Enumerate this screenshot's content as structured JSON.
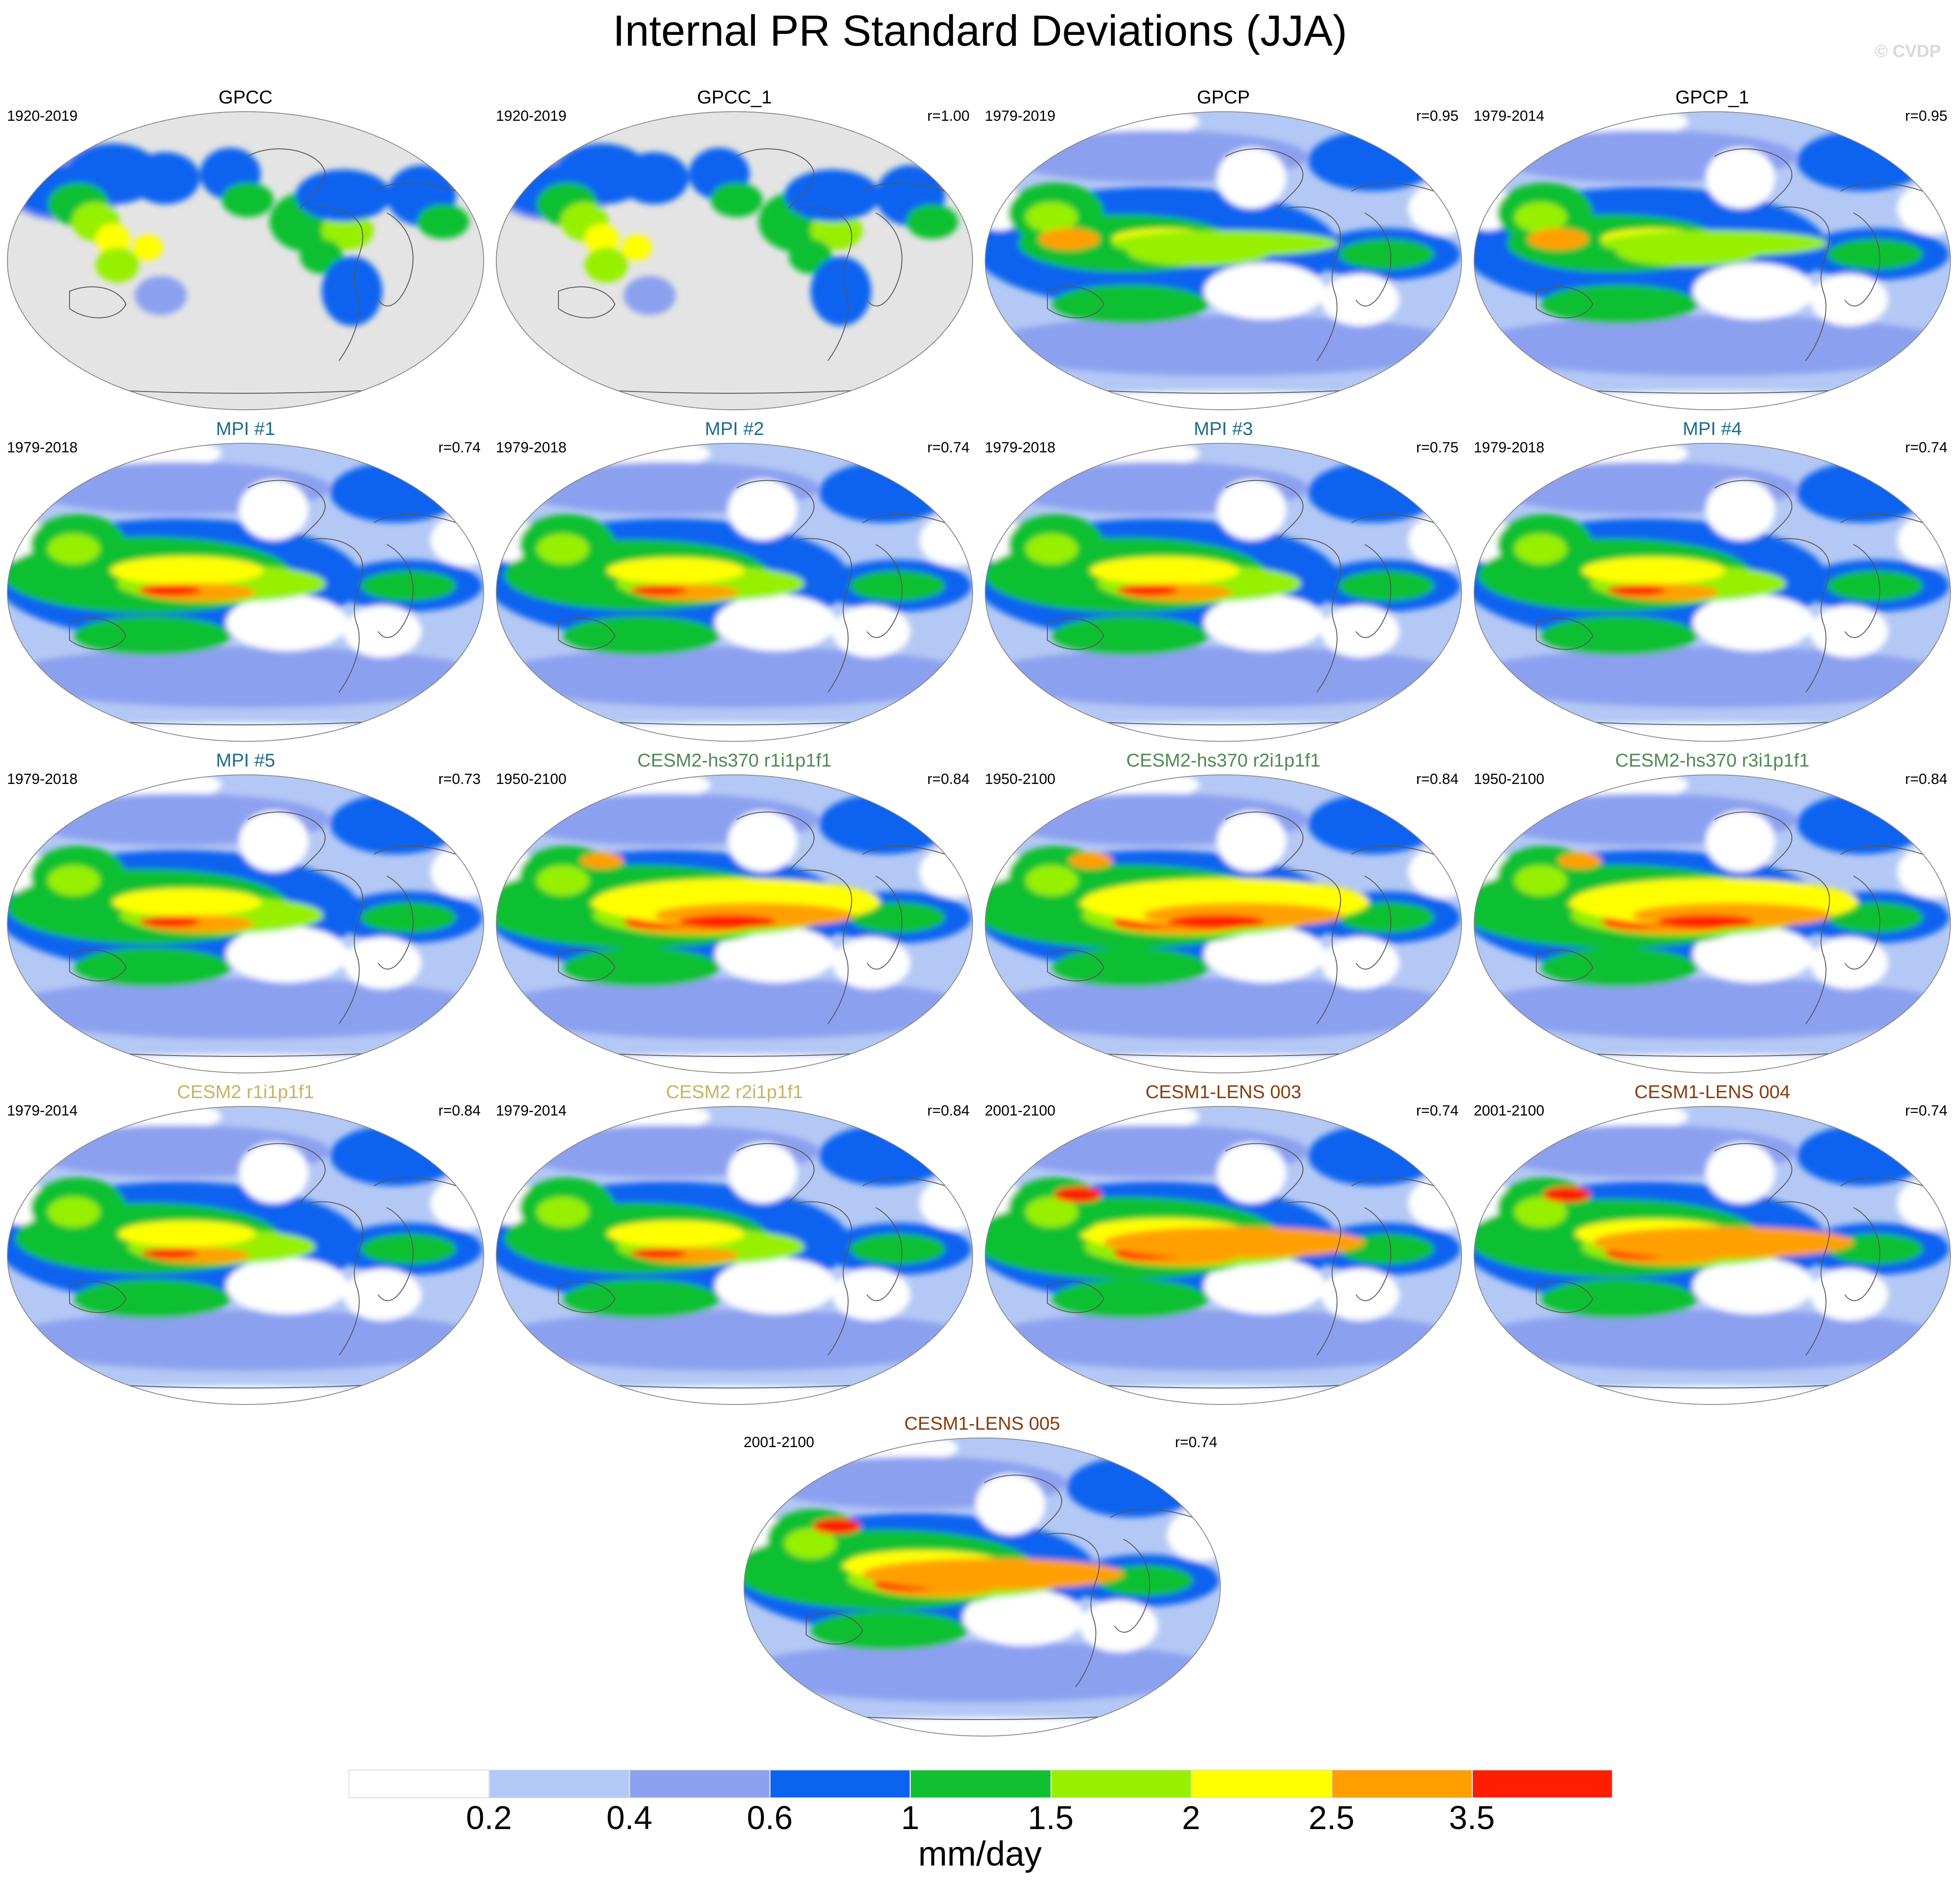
{
  "title": "Internal PR Standard Deviations (JJA)",
  "copyright": "© CVDP",
  "colors": {
    "obs_title": "#000000",
    "mpi_title": "#1e6b8a",
    "cesm2_hs370_title": "#4e8a55",
    "cesm2_title": "#c9b261",
    "cesm1_lens_title": "#8b3a0a",
    "ocean_mask": "#e4e4e4"
  },
  "panels": [
    {
      "title": "GPCC",
      "period": "1920-2019",
      "corr": "",
      "group": "obs",
      "mask": true,
      "intensity": 0.55,
      "variant": 0
    },
    {
      "title": "GPCC_1",
      "period": "1920-2019",
      "corr": "r=1.00",
      "group": "obs",
      "mask": true,
      "intensity": 0.55,
      "variant": 0
    },
    {
      "title": "GPCP",
      "period": "1979-2019",
      "corr": "r=0.95",
      "group": "obs",
      "mask": false,
      "intensity": 0.55,
      "variant": 1
    },
    {
      "title": "GPCP_1",
      "period": "1979-2014",
      "corr": "r=0.95",
      "group": "obs",
      "mask": false,
      "intensity": 0.55,
      "variant": 1
    },
    {
      "title": "MPI #1",
      "period": "1979-2018",
      "corr": "r=0.74",
      "group": "mpi",
      "mask": false,
      "intensity": 0.8,
      "variant": 2
    },
    {
      "title": "MPI #2",
      "period": "1979-2018",
      "corr": "r=0.74",
      "group": "mpi",
      "mask": false,
      "intensity": 0.72,
      "variant": 2
    },
    {
      "title": "MPI #3",
      "period": "1979-2018",
      "corr": "r=0.75",
      "group": "mpi",
      "mask": false,
      "intensity": 0.78,
      "variant": 2
    },
    {
      "title": "MPI #4",
      "period": "1979-2018",
      "corr": "r=0.74",
      "group": "mpi",
      "mask": false,
      "intensity": 0.75,
      "variant": 2
    },
    {
      "title": "MPI #5",
      "period": "1979-2018",
      "corr": "r=0.73",
      "group": "mpi",
      "mask": false,
      "intensity": 0.78,
      "variant": 2
    },
    {
      "title": "CESM2-hs370 r1i1p1f1",
      "period": "1950-2100",
      "corr": "r=0.84",
      "group": "cesm2_hs370",
      "mask": false,
      "intensity": 0.9,
      "variant": 3
    },
    {
      "title": "CESM2-hs370 r2i1p1f1",
      "period": "1950-2100",
      "corr": "r=0.84",
      "group": "cesm2_hs370",
      "mask": false,
      "intensity": 0.9,
      "variant": 3
    },
    {
      "title": "CESM2-hs370 r3i1p1f1",
      "period": "1950-2100",
      "corr": "r=0.84",
      "group": "cesm2_hs370",
      "mask": false,
      "intensity": 0.9,
      "variant": 3
    },
    {
      "title": "CESM2 r1i1p1f1",
      "period": "1979-2014",
      "corr": "r=0.84",
      "group": "cesm2",
      "mask": false,
      "intensity": 0.72,
      "variant": 4
    },
    {
      "title": "CESM2 r2i1p1f1",
      "period": "1979-2014",
      "corr": "r=0.84",
      "group": "cesm2",
      "mask": false,
      "intensity": 0.72,
      "variant": 4
    },
    {
      "title": "CESM1-LENS 003",
      "period": "2001-2100",
      "corr": "r=0.74",
      "group": "cesm1_lens",
      "mask": false,
      "intensity": 0.88,
      "variant": 5
    },
    {
      "title": "CESM1-LENS 004",
      "period": "2001-2100",
      "corr": "r=0.74",
      "group": "cesm1_lens",
      "mask": false,
      "intensity": 0.82,
      "variant": 5
    },
    {
      "title": "CESM1-LENS 005",
      "period": "2001-2100",
      "corr": "r=0.74",
      "group": "cesm1_lens",
      "mask": false,
      "intensity": 0.85,
      "variant": 5
    }
  ],
  "colorbar": {
    "levels": [
      "0.2",
      "0.4",
      "0.6",
      "1",
      "1.5",
      "2",
      "2.5",
      "3.5"
    ],
    "colors": [
      "#ffffff",
      "#b4c8f5",
      "#8ca0f0",
      "#0a64f0",
      "#10c030",
      "#96f000",
      "#ffff00",
      "#ffa000",
      "#ff1e00"
    ],
    "units": "mm/day"
  }
}
